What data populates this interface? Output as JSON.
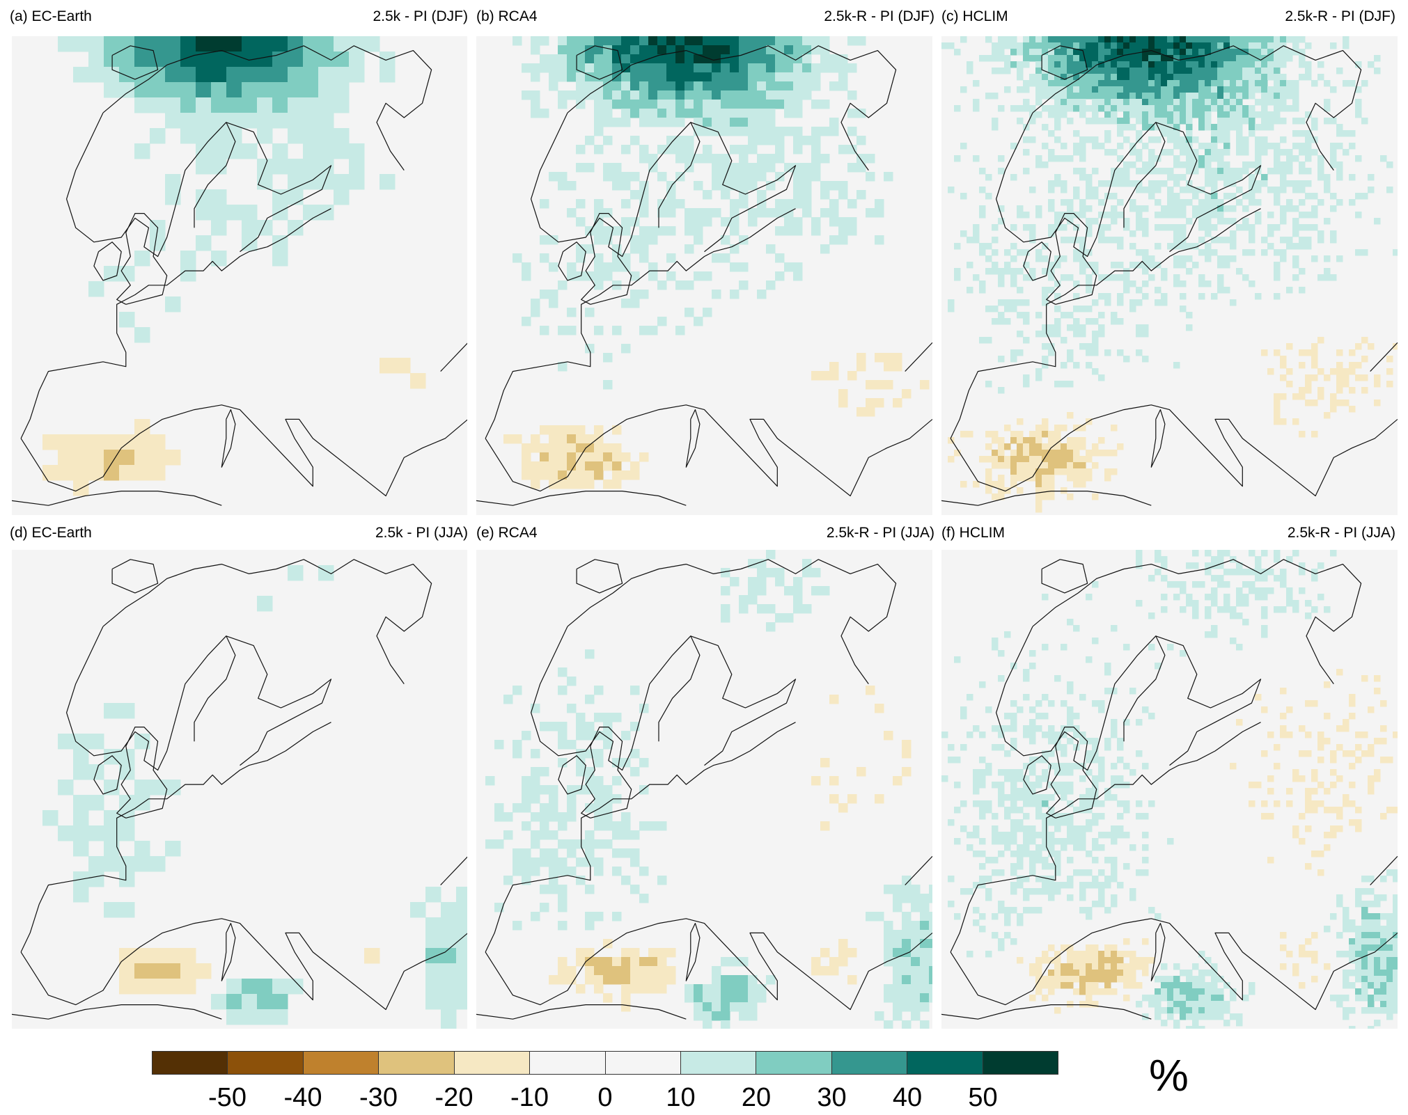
{
  "panels": [
    {
      "label": "(a) EC-Earth",
      "period": "2.5k - PI (DJF)",
      "style": "coarse",
      "season": "DJF"
    },
    {
      "label": "(b) RCA4",
      "period": "2.5k-R - PI (DJF)",
      "style": "medium",
      "season": "DJF"
    },
    {
      "label": "(c) HCLIM",
      "period": "2.5k-R - PI (DJF)",
      "style": "fine",
      "season": "DJF"
    },
    {
      "label": "(d) EC-Earth",
      "period": "2.5k - PI (JJA)",
      "style": "coarse",
      "season": "JJA"
    },
    {
      "label": "(e) RCA4",
      "period": "2.5k-R - PI (JJA)",
      "style": "medium",
      "season": "JJA"
    },
    {
      "label": "(f) HCLIM",
      "period": "2.5k-R - PI (JJA)",
      "style": "fine",
      "season": "JJA"
    }
  ],
  "colorbar": {
    "colors": [
      "#543005",
      "#8c510a",
      "#bf812d",
      "#dfc27d",
      "#f6e8c3",
      "#f5f5f5",
      "#f5f5f5",
      "#c7eae5",
      "#80cdc1",
      "#35978f",
      "#01665e",
      "#003c30"
    ],
    "ticks": [
      "-50",
      "-40",
      "-30",
      "-20",
      "-10",
      "0",
      "10",
      "20",
      "30",
      "40",
      "50"
    ],
    "unit": "%"
  }
}
